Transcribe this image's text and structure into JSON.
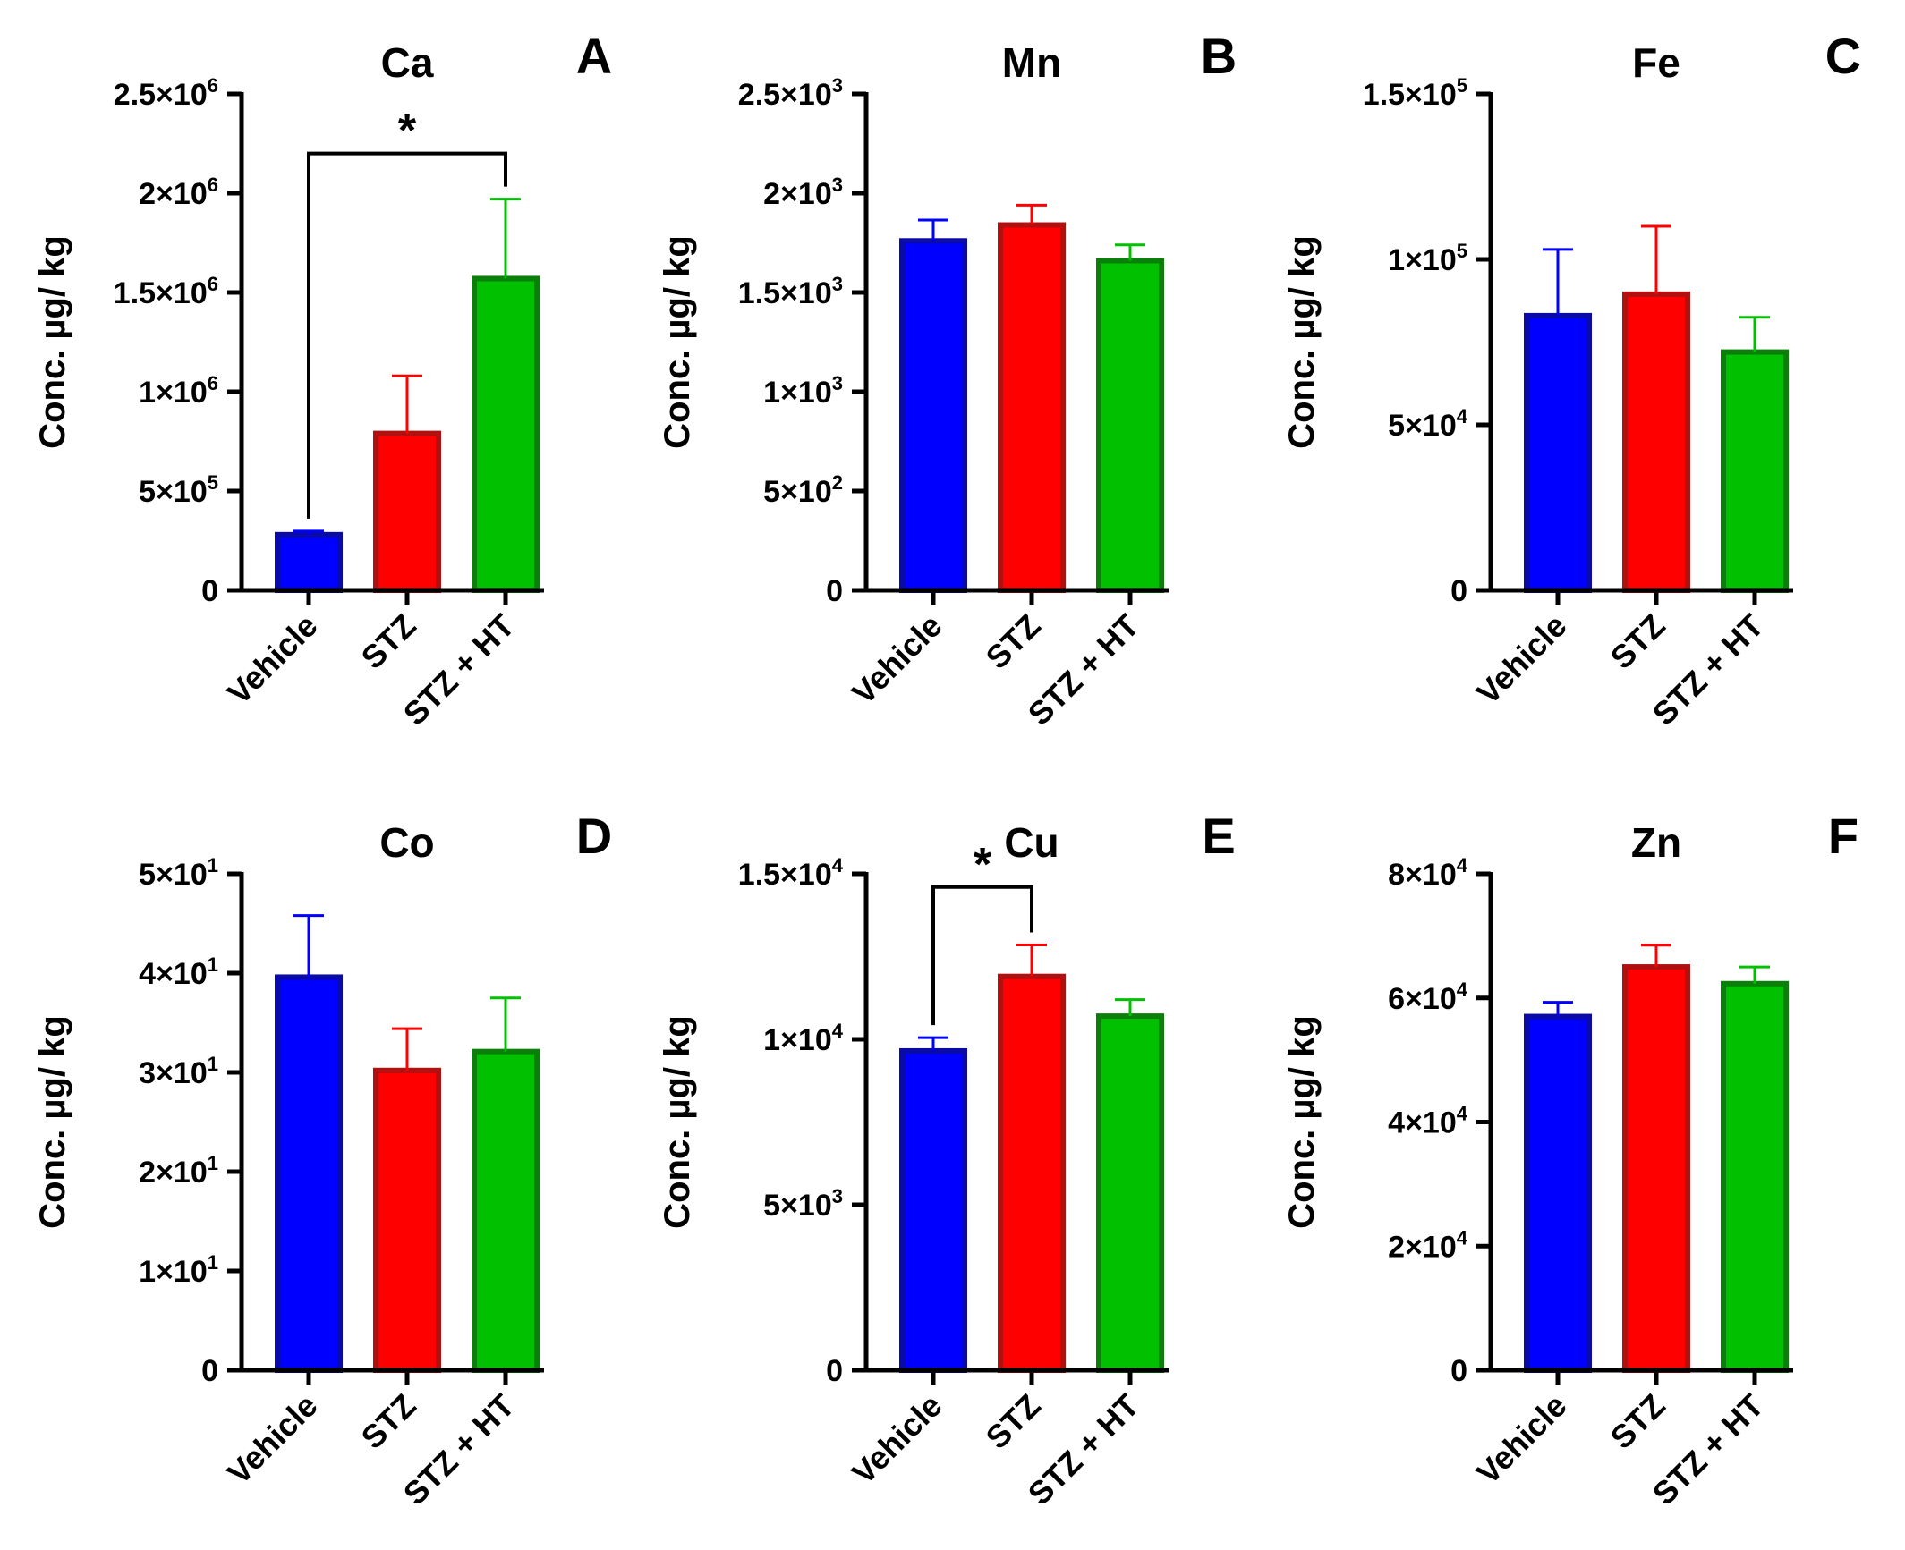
{
  "figure": {
    "description_labels": [
      "A",
      "B",
      "C",
      "D",
      "E",
      "F"
    ]
  },
  "colors": {
    "Vehicle": {
      "fill": "#0000ff",
      "stroke": "#0a0aa8"
    },
    "STZ": {
      "fill": "#ff0000",
      "stroke": "#b01010"
    },
    "STZ + HT": {
      "fill": "#00c000",
      "stroke": "#0a800a"
    }
  },
  "chart_data": [
    {
      "type": "bar",
      "panel": "A",
      "title": "Ca",
      "ylabel": "Conc. µg/ kg",
      "xlabel": "",
      "categories": [
        "Vehicle",
        "STZ",
        "STZ + HT"
      ],
      "values": [
        280000,
        790000,
        1570000
      ],
      "errors": [
        18000,
        290000,
        400000
      ],
      "ylim": [
        0,
        2500000
      ],
      "yticks": [
        0,
        500000,
        1000000,
        1500000,
        2000000,
        2500000
      ],
      "ytick_labels": [
        {
          "m": "0",
          "e": ""
        },
        {
          "m": "5×10",
          "e": "5"
        },
        {
          "m": "1×10",
          "e": "6"
        },
        {
          "m": "1.5×10",
          "e": "6"
        },
        {
          "m": "2×10",
          "e": "6"
        },
        {
          "m": "2.5×10",
          "e": "6"
        }
      ],
      "significance": [
        {
          "from": 0,
          "to": 2,
          "label": "*",
          "level": 2200000
        }
      ]
    },
    {
      "type": "bar",
      "panel": "B",
      "title": "Mn",
      "ylabel": "Conc. µg/ kg",
      "xlabel": "",
      "categories": [
        "Vehicle",
        "STZ",
        "STZ + HT"
      ],
      "values": [
        1760,
        1840,
        1660
      ],
      "errors": [
        105,
        100,
        80
      ],
      "ylim": [
        0,
        2500
      ],
      "yticks": [
        0,
        500,
        1000,
        1500,
        2000,
        2500
      ],
      "ytick_labels": [
        {
          "m": "0",
          "e": ""
        },
        {
          "m": "5×10",
          "e": "2"
        },
        {
          "m": "1×10",
          "e": "3"
        },
        {
          "m": "1.5×10",
          "e": "3"
        },
        {
          "m": "2×10",
          "e": "3"
        },
        {
          "m": "2.5×10",
          "e": "3"
        }
      ],
      "significance": []
    },
    {
      "type": "bar",
      "panel": "C",
      "title": "Fe",
      "ylabel": "Conc. µg/ kg",
      "xlabel": "",
      "categories": [
        "Vehicle",
        "STZ",
        "STZ + HT"
      ],
      "values": [
        83000,
        89500,
        72000
      ],
      "errors": [
        20000,
        20500,
        10500
      ],
      "ylim": [
        0,
        150000
      ],
      "yticks": [
        0,
        50000,
        100000,
        150000
      ],
      "ytick_labels": [
        {
          "m": "0",
          "e": ""
        },
        {
          "m": "5×10",
          "e": "4"
        },
        {
          "m": "1×10",
          "e": "5"
        },
        {
          "m": "1.5×10",
          "e": "5"
        }
      ],
      "significance": []
    },
    {
      "type": "bar",
      "panel": "D",
      "title": "Co",
      "ylabel": "Conc. µg/ kg",
      "xlabel": "",
      "categories": [
        "Vehicle",
        "STZ",
        "STZ + HT"
      ],
      "values": [
        39.6,
        30.2,
        32.1
      ],
      "errors": [
        6.2,
        4.2,
        5.4
      ],
      "ylim": [
        0,
        50
      ],
      "yticks": [
        0,
        10,
        20,
        30,
        40,
        50
      ],
      "ytick_labels": [
        {
          "m": "0",
          "e": ""
        },
        {
          "m": "1×10",
          "e": "1"
        },
        {
          "m": "2×10",
          "e": "1"
        },
        {
          "m": "3×10",
          "e": "1"
        },
        {
          "m": "4×10",
          "e": "1"
        },
        {
          "m": "5×10",
          "e": "1"
        }
      ],
      "significance": []
    },
    {
      "type": "bar",
      "panel": "E",
      "title": "Cu",
      "ylabel": "Conc. µg/ kg",
      "xlabel": "",
      "categories": [
        "Vehicle",
        "STZ",
        "STZ + HT"
      ],
      "values": [
        9650,
        11900,
        10700
      ],
      "errors": [
        400,
        950,
        500
      ],
      "ylim": [
        0,
        15000
      ],
      "yticks": [
        0,
        5000,
        10000,
        15000
      ],
      "ytick_labels": [
        {
          "m": "0",
          "e": ""
        },
        {
          "m": "5×10",
          "e": "3"
        },
        {
          "m": "1×10",
          "e": "4"
        },
        {
          "m": "1.5×10",
          "e": "4"
        }
      ],
      "significance": [
        {
          "from": 0,
          "to": 1,
          "label": "*",
          "level": 14600
        }
      ]
    },
    {
      "type": "bar",
      "panel": "F",
      "title": "Zn",
      "ylabel": "Conc. µg/ kg",
      "xlabel": "",
      "categories": [
        "Vehicle",
        "STZ",
        "STZ + HT"
      ],
      "values": [
        57000,
        65000,
        62300
      ],
      "errors": [
        2300,
        3500,
        2700
      ],
      "ylim": [
        0,
        80000
      ],
      "yticks": [
        0,
        20000,
        40000,
        60000,
        80000
      ],
      "ytick_labels": [
        {
          "m": "0",
          "e": ""
        },
        {
          "m": "2×10",
          "e": "4"
        },
        {
          "m": "4×10",
          "e": "4"
        },
        {
          "m": "6×10",
          "e": "4"
        },
        {
          "m": "8×10",
          "e": "4"
        }
      ],
      "significance": []
    }
  ]
}
